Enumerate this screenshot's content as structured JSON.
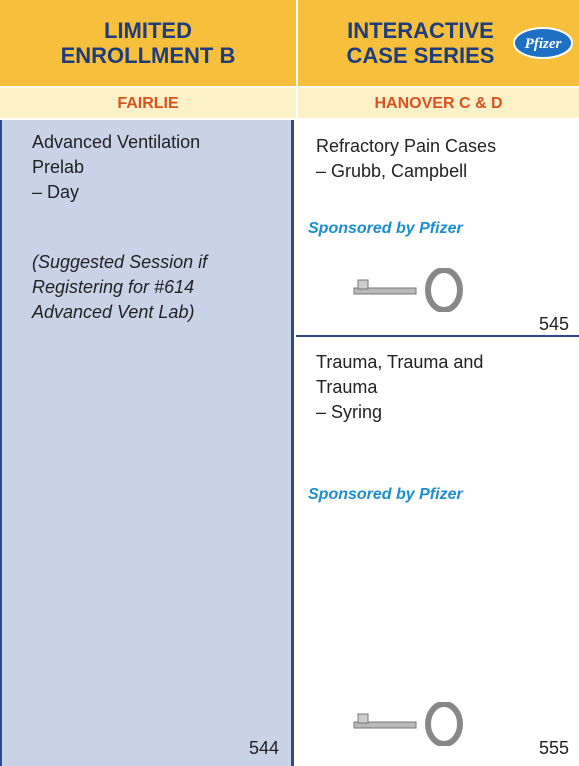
{
  "columns": [
    {
      "title_lines": [
        "LIMITED",
        "ENROLLMENT B"
      ],
      "room": "FAIRLIE"
    },
    {
      "title_lines": [
        "INTERACTIVE",
        "CASE SERIES"
      ],
      "room": "HANOVER C & D",
      "logo": "Pfizer"
    }
  ],
  "sessions": [
    {
      "lines": [
        "Advanced Ventilation",
        "Prelab",
        "– Day"
      ],
      "note_lines": [
        "(Suggested Session if",
        "Registering for #614",
        "Advanced Vent Lab)"
      ],
      "number": "544"
    },
    {
      "lines": [
        "Refractory Pain Cases",
        "– Grubb, Campbell"
      ],
      "sponsor": "Sponsored by Pfizer",
      "number": "545"
    },
    {
      "lines": [
        "Trauma, Trauma and",
        "Trauma",
        "– Syring"
      ],
      "sponsor": "Sponsored by Pfizer",
      "number": "555"
    }
  ]
}
